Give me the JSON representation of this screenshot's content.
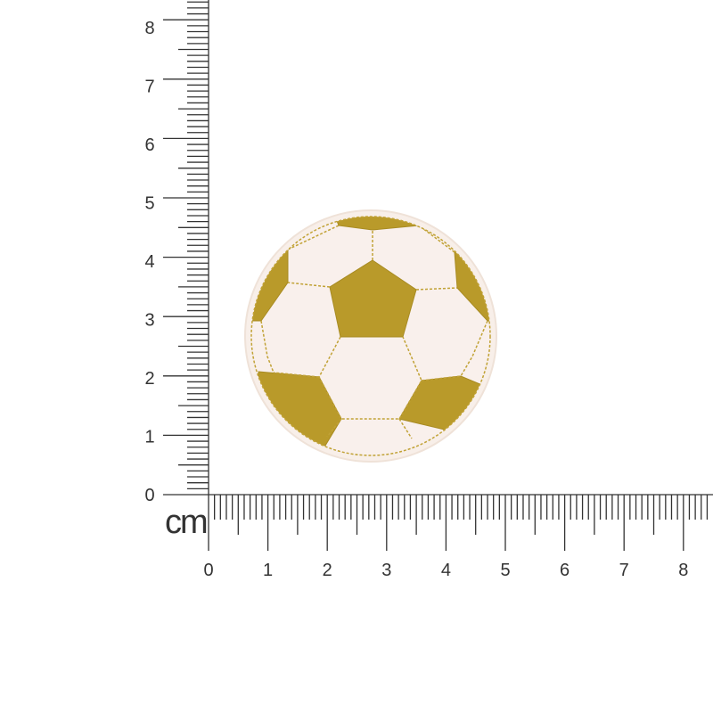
{
  "ruler": {
    "unit": "cm",
    "horizontal_labels": [
      "0",
      "1",
      "2",
      "3",
      "4",
      "5",
      "6",
      "7",
      "8"
    ],
    "vertical_labels": [
      "0",
      "1",
      "2",
      "3",
      "4",
      "5",
      "6",
      "7",
      "8"
    ],
    "color": "#333333"
  },
  "product": {
    "subject": "embroidered soccer ball patch",
    "fabric_color": "#f7ece6",
    "thread_color": "#b99a2a"
  }
}
